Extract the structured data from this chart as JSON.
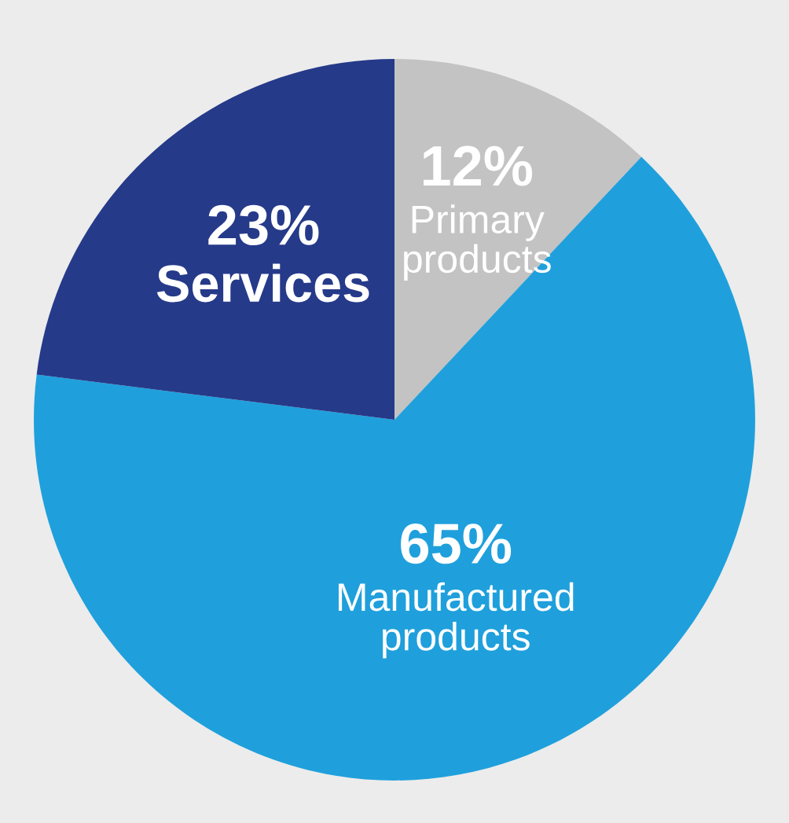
{
  "chart_data": {
    "type": "pie",
    "categories": [
      "Primary products",
      "Manufactured products",
      "Services"
    ],
    "values": [
      12,
      65,
      23
    ],
    "colors": [
      "#c3c3c3",
      "#1fa0dc",
      "#263a8a"
    ],
    "value_labels": [
      "12%",
      "65%",
      "23%"
    ],
    "legend": false
  }
}
